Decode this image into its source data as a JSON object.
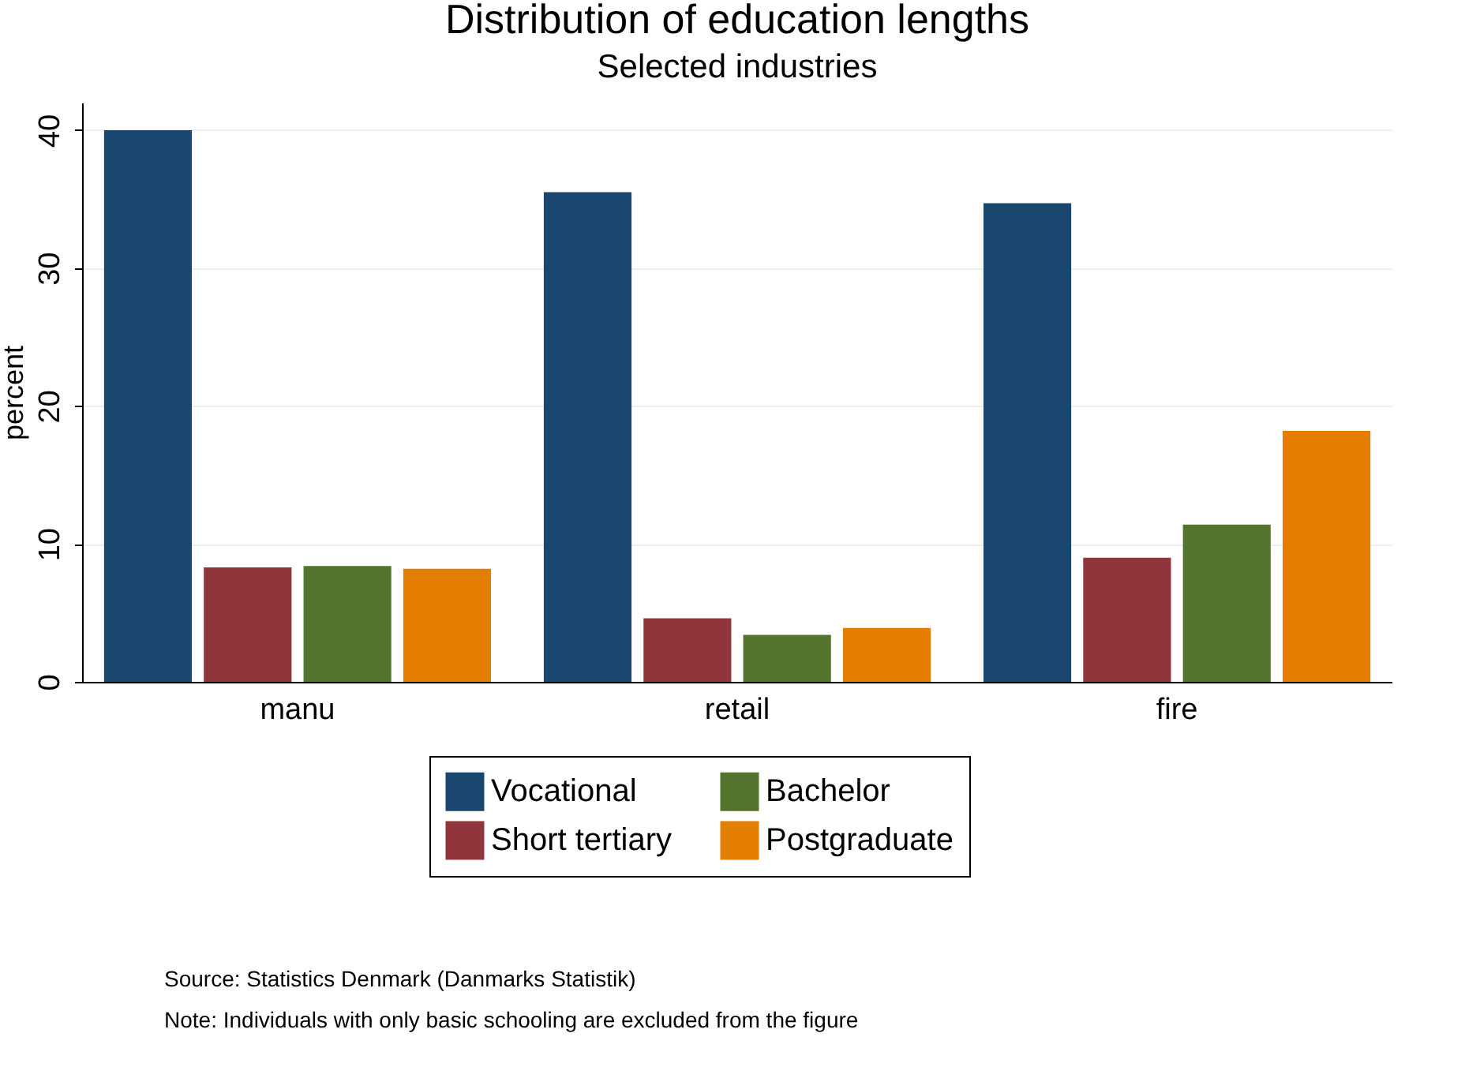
{
  "chart_data": {
    "type": "bar",
    "title": "Distribution of education lengths",
    "subtitle": "Selected industries",
    "ylabel": "percent",
    "categories": [
      "manu",
      "retail",
      "fire"
    ],
    "series": [
      {
        "name": "Vocational",
        "color": "#1a476f",
        "values": [
          40.0,
          35.5,
          34.7
        ]
      },
      {
        "name": "Short tertiary",
        "color": "#90353b",
        "values": [
          8.3,
          4.6,
          9.0
        ]
      },
      {
        "name": "Bachelor",
        "color": "#55752f",
        "values": [
          8.4,
          3.4,
          11.4
        ]
      },
      {
        "name": "Postgraduate",
        "color": "#e37e00",
        "values": [
          8.2,
          3.9,
          18.2
        ]
      }
    ],
    "ylim": [
      0,
      42
    ],
    "yticks": [
      0,
      10,
      20,
      30,
      40
    ],
    "grid": "y",
    "legend": "bottom",
    "annotations": [
      "Source: Statistics Denmark (Danmarks Statistik)",
      "Note: Individuals with only basic schooling are excluded from the figure"
    ]
  }
}
